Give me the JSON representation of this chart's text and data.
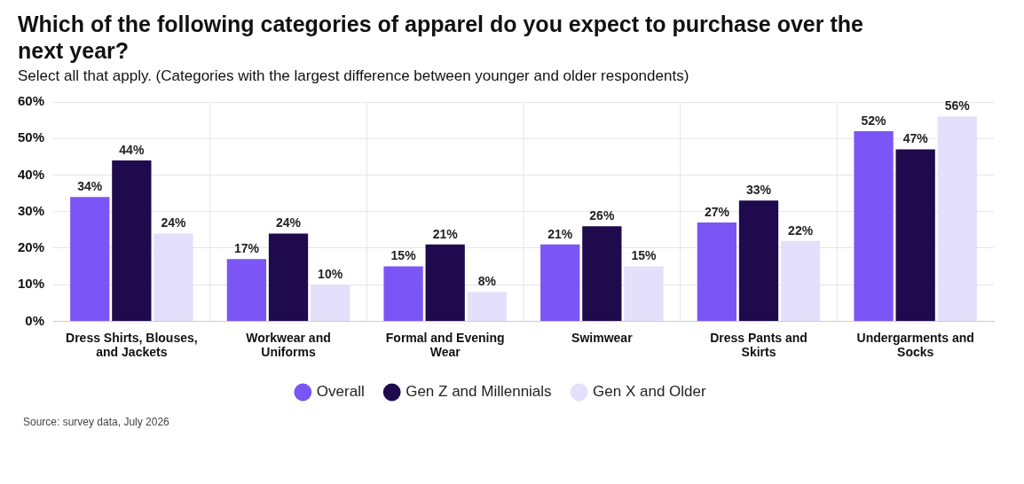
{
  "chart_data": {
    "type": "bar",
    "title": "Which of the following categories of apparel do you expect to purchase over the next year?",
    "subtitle": "Select all that apply. (Categories with the largest difference between younger and older respondents)",
    "categories": [
      "Dress Shirts, Blouses, and Jackets",
      "Workwear and Uniforms",
      "Formal and Evening Wear",
      "Swimwear",
      "Dress Pants and Skirts",
      "Undergarments and Socks"
    ],
    "series": [
      {
        "name": "Overall",
        "color": "#7b55f5",
        "values": [
          34,
          17,
          15,
          21,
          27,
          52
        ],
        "value_labels": [
          "34%",
          "17%",
          "15%",
          "21%",
          "27%",
          "52%"
        ]
      },
      {
        "name": "Gen Z and Millennials",
        "color": "#1e0a4c",
        "values": [
          44,
          24,
          21,
          26,
          33,
          47
        ],
        "value_labels": [
          "44%",
          "24%",
          "21%",
          "26%",
          "33%",
          "47%"
        ]
      },
      {
        "name": "Gen X and Older",
        "color": "#e4e0fb",
        "values": [
          24,
          10,
          8,
          15,
          22,
          56
        ],
        "value_labels": [
          "24%",
          "10%",
          "8%",
          "15%",
          "22%",
          "56%"
        ]
      }
    ],
    "ylim": [
      0,
      60
    ],
    "yticks": [
      {
        "value": 0,
        "label": "0%"
      },
      {
        "value": 10,
        "label": "10%"
      },
      {
        "value": 20,
        "label": "20%"
      },
      {
        "value": 30,
        "label": "30%"
      },
      {
        "value": 40,
        "label": "40%"
      },
      {
        "value": 50,
        "label": "50%"
      },
      {
        "value": 60,
        "label": "60%"
      }
    ],
    "grid": true,
    "legend": "bottom",
    "annotations": [
      "Source: survey data, July 2026"
    ]
  }
}
